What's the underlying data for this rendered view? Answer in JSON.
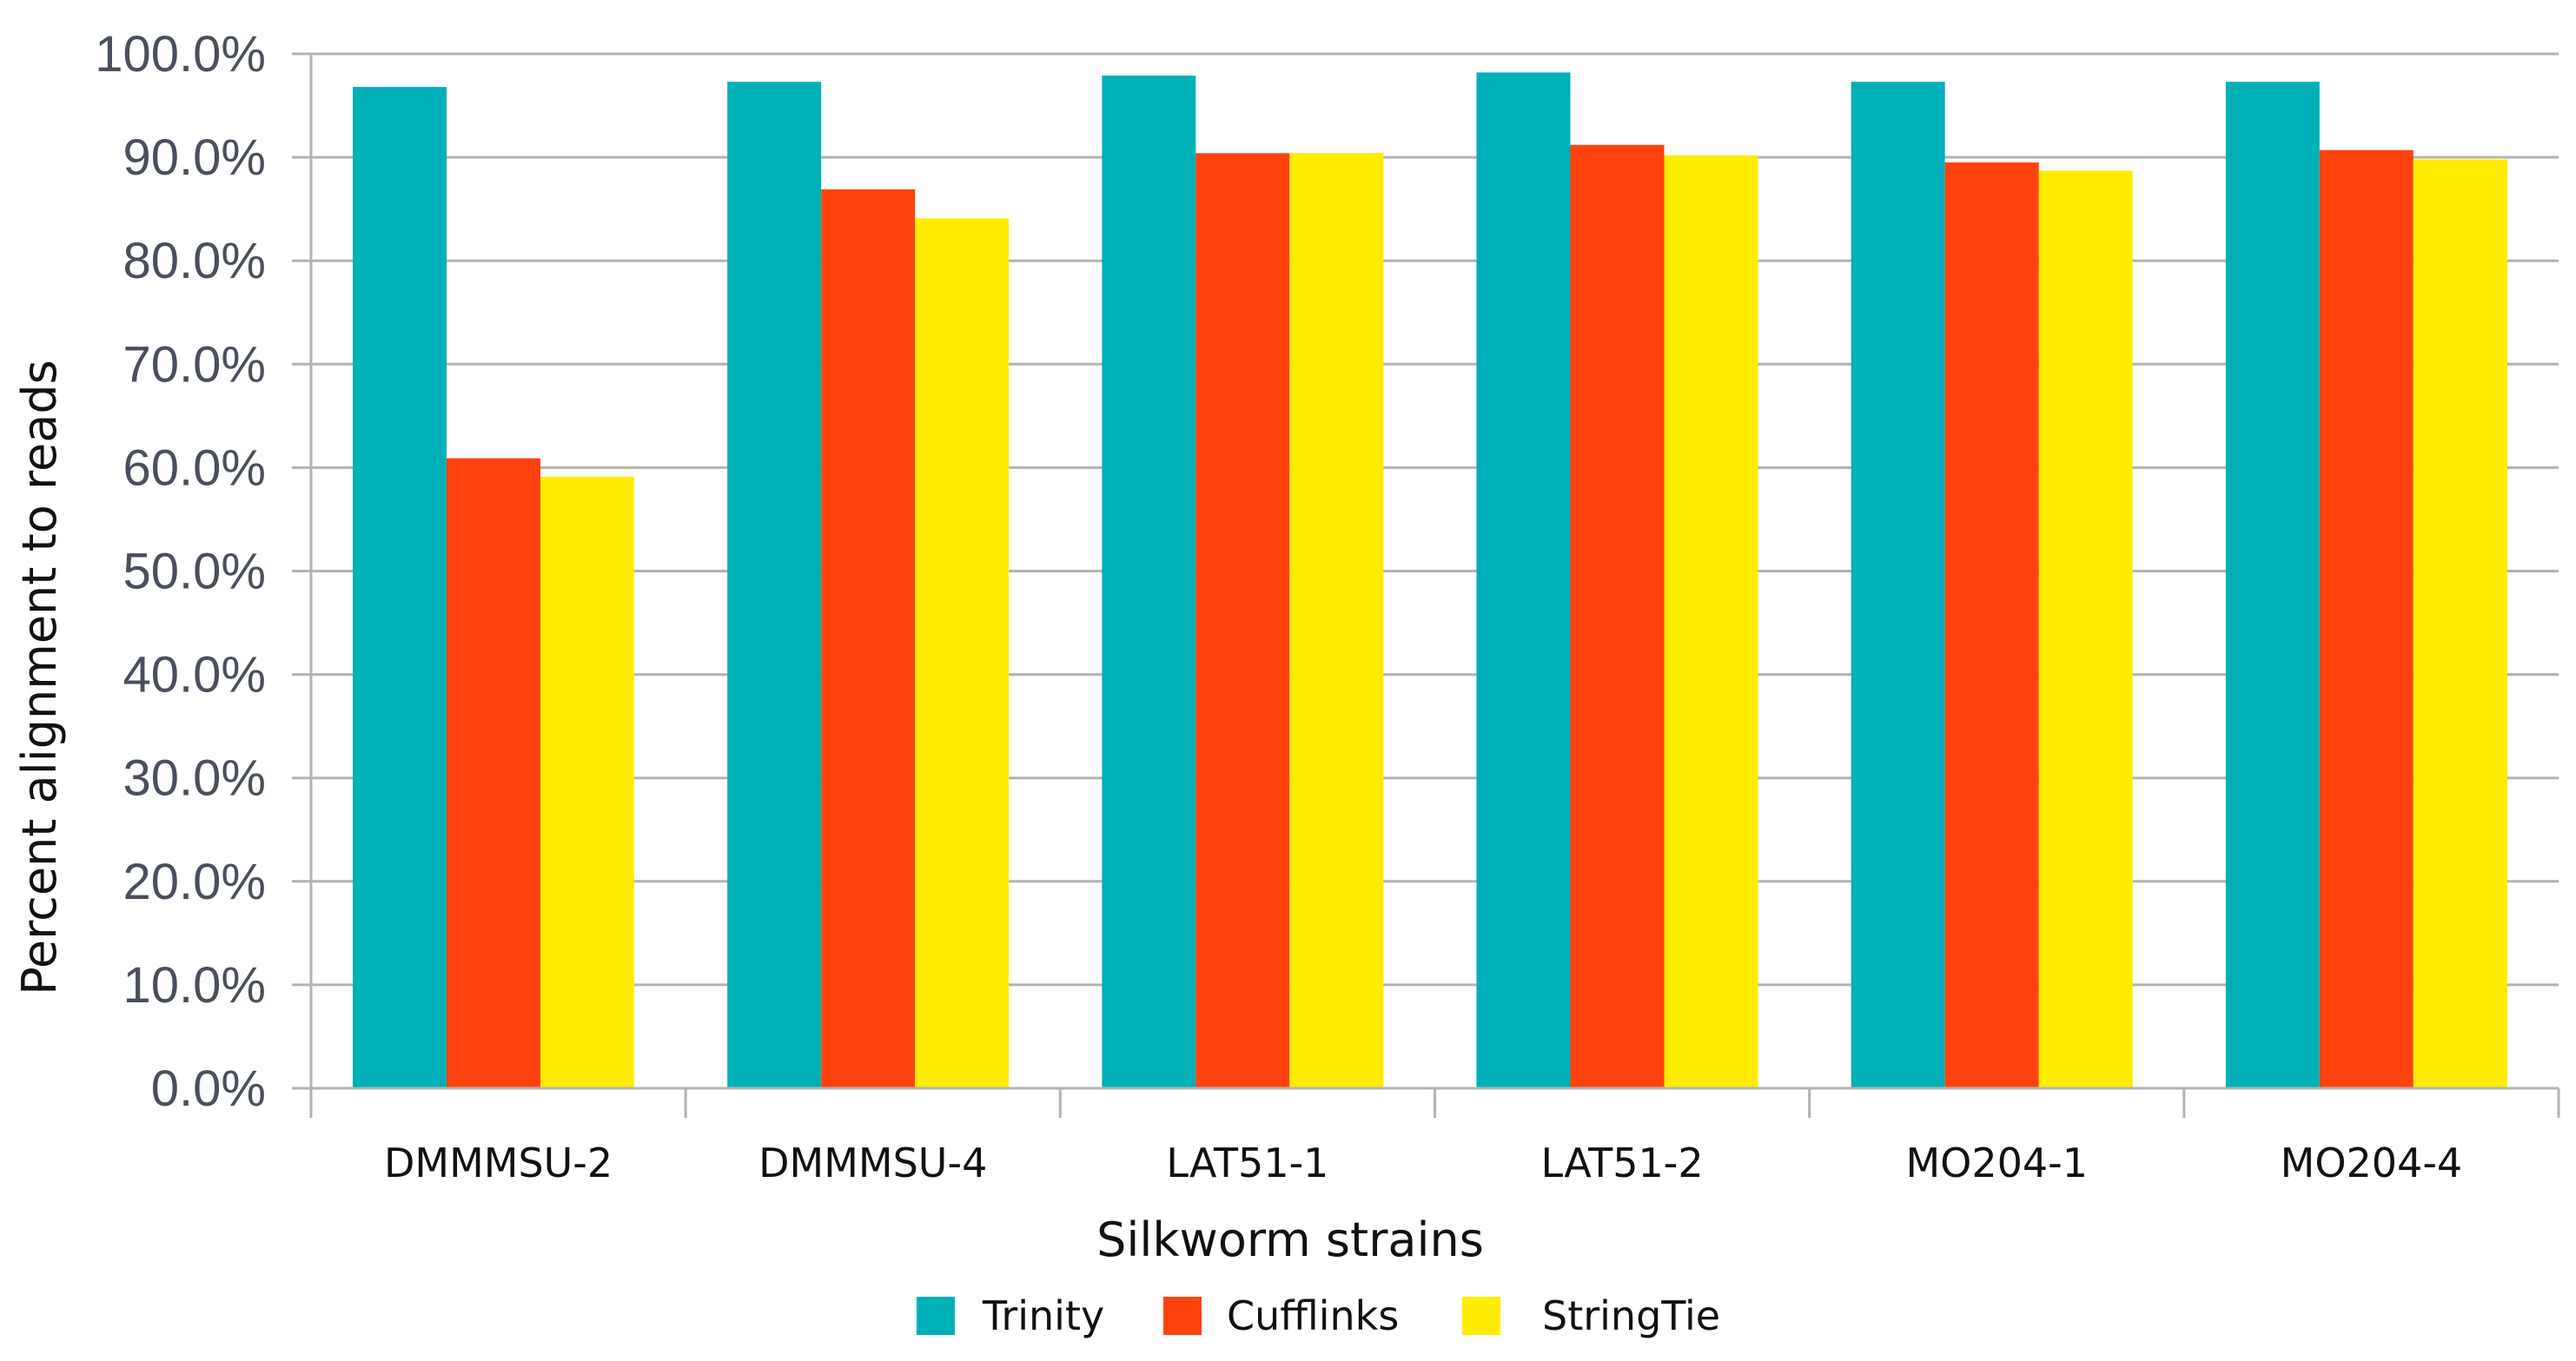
{
  "chart_data": {
    "type": "bar",
    "title": "",
    "xlabel": "Silkworm strains",
    "ylabel": "Percent alignment to reads",
    "ylim": [
      0,
      100
    ],
    "ytick_step": 10,
    "ytick_labels": [
      "0.0%",
      "10.0%",
      "20.0%",
      "30.0%",
      "40.0%",
      "50.0%",
      "60.0%",
      "70.0%",
      "80.0%",
      "90.0%",
      "100.0%"
    ],
    "grid": true,
    "legend_position": "bottom",
    "categories": [
      "DMMMSU-2",
      "DMMMSU-4",
      "LAT51-1",
      "LAT51-2",
      "MO204-1",
      "MO204-4"
    ],
    "series": [
      {
        "name": "Trinity",
        "color": "#00b0b8",
        "values": [
          96.8,
          97.3,
          97.9,
          98.2,
          97.3,
          97.3
        ]
      },
      {
        "name": "Cufflinks",
        "color": "#ff420e",
        "values": [
          60.9,
          86.9,
          90.4,
          91.2,
          89.5,
          90.7
        ]
      },
      {
        "name": "StringTie",
        "color": "#ffec00",
        "values": [
          59.1,
          84.1,
          90.4,
          90.2,
          88.7,
          89.8
        ]
      }
    ]
  }
}
